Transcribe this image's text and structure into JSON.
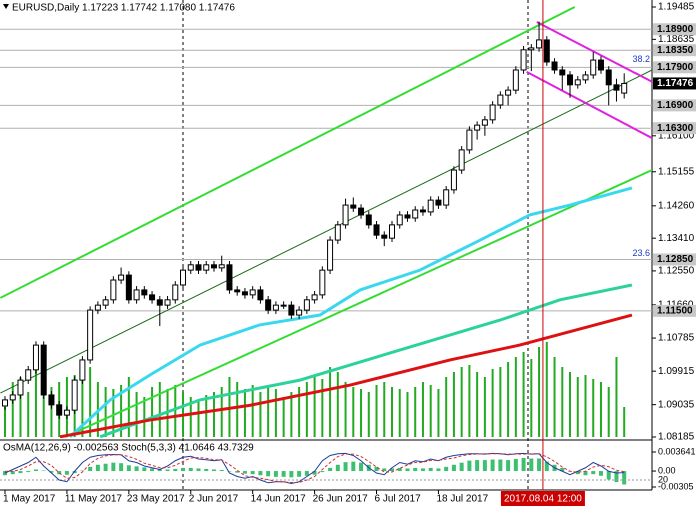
{
  "chart_data": {
    "type": "candlestick",
    "title": "EURUSD,Daily  1.17223 1.17742 1.17080 1.17476",
    "subtitle": "OsMA(12,26,9) -0.002563  Stoch(5,3,3) 41.0646 43.7329",
    "crosshair": {
      "x": 69.5,
      "label": "2017.08.04 12:00"
    },
    "categories": [
      "1 May 2017",
      null,
      null,
      null,
      null,
      null,
      null,
      null,
      "11 May 2017",
      null,
      null,
      null,
      null,
      null,
      null,
      null,
      "23 May 2017",
      null,
      null,
      null,
      null,
      null,
      null,
      null,
      "2 Jun 2017",
      null,
      null,
      null,
      null,
      null,
      null,
      null,
      "14 Jun 2017",
      null,
      null,
      null,
      null,
      null,
      null,
      null,
      "26 Jun 2017",
      null,
      null,
      null,
      null,
      null,
      null,
      null,
      "6 Jul 2017",
      null,
      null,
      null,
      null,
      null,
      null,
      null,
      "18 Jul 2017",
      null,
      null,
      null,
      null,
      null,
      null,
      null,
      null,
      null,
      null,
      null,
      null,
      null,
      null,
      null,
      null,
      null,
      null,
      null,
      null,
      null,
      null,
      null,
      null
    ],
    "up_color": "#ffffff",
    "down_color": "#000000",
    "candles": [
      [
        1.09,
        1.0926,
        1.089,
        1.0916
      ],
      [
        1.0916,
        1.0939,
        1.0906,
        1.0929
      ],
      [
        1.0929,
        1.0978,
        1.0919,
        1.0968
      ],
      [
        1.0968,
        1.1005,
        1.0958,
        1.0995
      ],
      [
        1.0995,
        1.107,
        1.0985,
        1.106
      ],
      [
        1.106,
        1.107,
        1.0919,
        1.0929
      ],
      [
        1.0929,
        1.0939,
        1.0893,
        1.0903
      ],
      [
        1.0903,
        1.0913,
        1.0866,
        1.0876
      ],
      [
        1.0876,
        1.0899,
        1.0866,
        1.0889
      ],
      [
        1.0889,
        1.0978,
        1.0879,
        1.0968
      ],
      [
        1.0968,
        1.1031,
        1.0958,
        1.1021
      ],
      [
        1.1021,
        1.1162,
        1.1011,
        1.1152
      ],
      [
        1.1152,
        1.1175,
        1.1142,
        1.1165
      ],
      [
        1.1165,
        1.1189,
        1.1155,
        1.1179
      ],
      [
        1.1179,
        1.1241,
        1.1169,
        1.1231
      ],
      [
        1.1231,
        1.1264,
        1.1221,
        1.1244
      ],
      [
        1.1244,
        1.1254,
        1.1169,
        1.1179
      ],
      [
        1.1179,
        1.1215,
        1.1169,
        1.1205
      ],
      [
        1.1205,
        1.1215,
        1.1182,
        1.1192
      ],
      [
        1.1192,
        1.1202,
        1.1169,
        1.1179
      ],
      [
        1.1179,
        1.1189,
        1.111,
        1.1165
      ],
      [
        1.1165,
        1.1189,
        1.1155,
        1.1179
      ],
      [
        1.1179,
        1.1228,
        1.1169,
        1.1218
      ],
      [
        1.1218,
        1.1267,
        1.1208,
        1.1257
      ],
      [
        1.1257,
        1.1281,
        1.1247,
        1.1271
      ],
      [
        1.1271,
        1.1281,
        1.1247,
        1.1257
      ],
      [
        1.1257,
        1.1281,
        1.1247,
        1.1271
      ],
      [
        1.1271,
        1.1281,
        1.1253,
        1.1263
      ],
      [
        1.1263,
        1.1295,
        1.1253,
        1.1271
      ],
      [
        1.1271,
        1.1281,
        1.1195,
        1.1205
      ],
      [
        1.1205,
        1.1215,
        1.119,
        1.12
      ],
      [
        1.12,
        1.121,
        1.1182,
        1.1192
      ],
      [
        1.1192,
        1.1215,
        1.1182,
        1.1205
      ],
      [
        1.1205,
        1.1215,
        1.1169,
        1.1179
      ],
      [
        1.1179,
        1.1189,
        1.1142,
        1.1152
      ],
      [
        1.1152,
        1.1175,
        1.1142,
        1.1165
      ],
      [
        1.1165,
        1.1175,
        1.1155,
        1.1165
      ],
      [
        1.1165,
        1.1175,
        1.1129,
        1.1139
      ],
      [
        1.1139,
        1.1162,
        1.1129,
        1.1152
      ],
      [
        1.1152,
        1.1189,
        1.1142,
        1.1179
      ],
      [
        1.1179,
        1.1202,
        1.1169,
        1.1192
      ],
      [
        1.1192,
        1.1267,
        1.1182,
        1.1257
      ],
      [
        1.1257,
        1.1346,
        1.1247,
        1.1336
      ],
      [
        1.1336,
        1.1386,
        1.1326,
        1.1376
      ],
      [
        1.1376,
        1.1445,
        1.1366,
        1.1428
      ],
      [
        1.1428,
        1.1448,
        1.141,
        1.142
      ],
      [
        1.142,
        1.143,
        1.1392,
        1.1402
      ],
      [
        1.1402,
        1.1412,
        1.1366,
        1.1376
      ],
      [
        1.1376,
        1.1386,
        1.1339,
        1.1349
      ],
      [
        1.1349,
        1.1359,
        1.132,
        1.1341
      ],
      [
        1.1341,
        1.1386,
        1.1331,
        1.1376
      ],
      [
        1.1376,
        1.1412,
        1.1366,
        1.1402
      ],
      [
        1.1402,
        1.1412,
        1.1384,
        1.1394
      ],
      [
        1.1394,
        1.1425,
        1.1384,
        1.1415
      ],
      [
        1.1415,
        1.1425,
        1.14,
        1.141
      ],
      [
        1.141,
        1.1451,
        1.14,
        1.1441
      ],
      [
        1.1441,
        1.1451,
        1.1418,
        1.1428
      ],
      [
        1.1428,
        1.1478,
        1.1418,
        1.1468
      ],
      [
        1.1468,
        1.153,
        1.1458,
        1.152
      ],
      [
        1.152,
        1.1583,
        1.151,
        1.1573
      ],
      [
        1.1573,
        1.1635,
        1.1563,
        1.1625
      ],
      [
        1.1625,
        1.1648,
        1.16,
        1.1638
      ],
      [
        1.1638,
        1.1662,
        1.161,
        1.1652
      ],
      [
        1.1652,
        1.1701,
        1.1642,
        1.1691
      ],
      [
        1.1691,
        1.1727,
        1.1681,
        1.1717
      ],
      [
        1.1717,
        1.174,
        1.169,
        1.173
      ],
      [
        1.173,
        1.1793,
        1.172,
        1.1783
      ],
      [
        1.1783,
        1.1846,
        1.1773,
        1.1836
      ],
      [
        1.1836,
        1.1851,
        1.178,
        1.1841
      ],
      [
        1.1841,
        1.191,
        1.1831,
        1.1862
      ],
      [
        1.1862,
        1.1872,
        1.1794,
        1.1804
      ],
      [
        1.1804,
        1.1814,
        1.1773,
        1.1783
      ],
      [
        1.1783,
        1.1793,
        1.173,
        1.177
      ],
      [
        1.177,
        1.178,
        1.171,
        1.1744
      ],
      [
        1.1744,
        1.1767,
        1.1734,
        1.1757
      ],
      [
        1.1757,
        1.178,
        1.1747,
        1.177
      ],
      [
        1.177,
        1.183,
        1.176,
        1.1809
      ],
      [
        1.1809,
        1.1819,
        1.1773,
        1.1783
      ],
      [
        1.1783,
        1.1793,
        1.169,
        1.1744
      ],
      [
        1.1744,
        1.176,
        1.17,
        1.173
      ],
      [
        1.17223,
        1.17742,
        1.1708,
        1.17476
      ]
    ],
    "volume_color": "#22aa22",
    "volume_lim": [
      0,
      430
    ],
    "volume": [
      30,
      55,
      60,
      45,
      70,
      65,
      50,
      55,
      60,
      62,
      58,
      70,
      55,
      50,
      48,
      52,
      60,
      45,
      40,
      50,
      55,
      48,
      52,
      45,
      40,
      38,
      42,
      45,
      50,
      60,
      55,
      48,
      52,
      45,
      50,
      48,
      40,
      45,
      50,
      55,
      60,
      58,
      70,
      65,
      55,
      50,
      48,
      45,
      52,
      55,
      50,
      48,
      45,
      50,
      55,
      52,
      48,
      60,
      65,
      70,
      72,
      65,
      60,
      68,
      70,
      75,
      80,
      85,
      78,
      90,
      95,
      80,
      70,
      65,
      60,
      62,
      58,
      55,
      50,
      80,
      30
    ],
    "ylim": [
      1.08185,
      1.19485
    ],
    "yticks": [
      1.19485,
      1.18635,
      {
        "value": 1.161,
        "label": "1.16100"
      },
      1.15155,
      {
        "value": 1.1426,
        "label": "1.14260"
      },
      {
        "value": 1.1341,
        "label": "1.13410"
      },
      {
        "value": 1.1255,
        "label": "1.12550"
      },
      {
        "value": 1.1166,
        "label": "1.11660"
      },
      1.10785,
      1.09915,
      1.09035,
      1.08185
    ],
    "levels": [
      {
        "value": 1.189,
        "label": "1.18900"
      },
      {
        "value": 1.1835,
        "label": "1.18350"
      },
      {
        "value": 1.179,
        "label": "1.17900"
      },
      {
        "value": 1.169,
        "label": "1.16900"
      },
      {
        "value": 1.163,
        "label": "1.16300"
      },
      {
        "value": 1.1285,
        "label": "1.12850"
      },
      {
        "value": 1.115,
        "label": "1.11500"
      }
    ],
    "last_price": 1.17476,
    "fib_levels": [
      {
        "text": "38.2",
        "price": 1.1795
      },
      {
        "text": "23.6",
        "price": 1.1285
      }
    ],
    "overlays": [
      {
        "color": "#33dd33",
        "width": 2,
        "x": [
          -0.6,
          73.6
        ],
        "values": [
          1.1184,
          1.19485
        ]
      },
      {
        "color": "#33dd33",
        "width": 2,
        "x": [
          7.75,
          83.6
        ],
        "values": [
          1.08185,
          1.152
        ]
      },
      {
        "color": "#1a6b1a",
        "width": 1,
        "x": [
          -0.6,
          83.6
        ],
        "values": [
          1.0934,
          1.1783
        ]
      },
      {
        "color": "#e020e0",
        "width": 2,
        "x": [
          68.7,
          83.6
        ],
        "values": [
          1.1909,
          1.1752
        ]
      },
      {
        "color": "#e020e0",
        "width": 2,
        "x": [
          67.4,
          83.6
        ],
        "values": [
          1.1778,
          1.1604
        ]
      },
      {
        "color": "#3ad8ee",
        "width": 3,
        "x": [
          8.4,
          13.6,
          18.7,
          25.2,
          32.9,
          40.7,
          45.9,
          53.6,
          61.4,
          67.8,
          73.0,
          81.0
        ],
        "values": [
          1.0819,
          1.0916,
          1.0981,
          1.106,
          1.1113,
          1.1139,
          1.1205,
          1.1257,
          1.1336,
          1.1402,
          1.1428,
          1.1473
        ]
      },
      {
        "color": "#2bd39a",
        "width": 3,
        "x": [
          12.3,
          25.2,
          38.1,
          51.0,
          64.0,
          71.7,
          81.0
        ],
        "values": [
          1.0819,
          1.0916,
          1.0968,
          1.1047,
          1.1126,
          1.1179,
          1.1218
        ]
      },
      {
        "color": "#dd1111",
        "width": 3,
        "x": [
          7.1,
          18.7,
          31.7,
          44.6,
          57.5,
          66.5,
          81.0
        ],
        "values": [
          1.0819,
          1.0863,
          1.0902,
          1.0955,
          1.1021,
          1.106,
          1.1139
        ]
      }
    ],
    "osma": {
      "color": "#3cc070",
      "values": [
        -0.0008,
        -0.0006,
        -0.0004,
        -0.0002,
        0.0003,
        0.0001,
        -0.0003,
        -0.0006,
        -0.0007,
        -0.0004,
        0.0001,
        0.0008,
        0.0012,
        0.0014,
        0.0016,
        0.0015,
        0.0011,
        0.0009,
        0.0007,
        0.0005,
        0.0003,
        0.0003,
        0.0004,
        0.0006,
        0.0006,
        0.0005,
        0.0004,
        0.0003,
        0.0002,
        -0.0001,
        -0.0003,
        -0.0005,
        -0.0006,
        -0.0008,
        -0.001,
        -0.0011,
        -0.0011,
        -0.0012,
        -0.0011,
        -0.0009,
        -0.0007,
        -0.0002,
        0.0006,
        0.0012,
        0.0017,
        0.0018,
        0.0016,
        0.0012,
        0.0008,
        0.0005,
        0.0005,
        0.0006,
        0.0005,
        0.0006,
        0.0005,
        0.0006,
        0.0005,
        0.0008,
        0.0012,
        0.0016,
        0.002,
        0.0021,
        0.0021,
        0.0022,
        0.0022,
        0.0021,
        0.0023,
        0.0025,
        0.0024,
        0.0024,
        0.0018,
        0.0012,
        0.0006,
        -0.0001,
        -0.0006,
        -0.0008,
        -0.0006,
        -0.0009,
        -0.0016,
        -0.0021,
        -0.002563
      ],
      "ylim": [
        -0.00305,
        0.003641
      ],
      "yticks": [
        0.003641,
        {
          "value": 0,
          "label": "0.00"
        },
        -0.00305
      ]
    },
    "stoch": {
      "y2lim": [
        0,
        100
      ],
      "y2ticks": [
        20
      ],
      "series": [
        {
          "color": "#1e3ca0",
          "values": [
            40,
            50,
            60,
            70,
            85,
            60,
            40,
            20,
            15,
            45,
            70,
            85,
            90,
            92,
            93,
            92,
            75,
            70,
            60,
            55,
            50,
            60,
            75,
            85,
            88,
            80,
            78,
            75,
            78,
            40,
            30,
            25,
            30,
            20,
            12,
            15,
            15,
            10,
            15,
            30,
            45,
            75,
            90,
            95,
            96,
            90,
            75,
            55,
            40,
            35,
            55,
            70,
            65,
            75,
            72,
            80,
            75,
            85,
            90,
            93,
            95,
            95,
            94,
            96,
            95,
            92,
            95,
            96,
            94,
            95,
            70,
            55,
            45,
            35,
            45,
            55,
            70,
            60,
            45,
            40,
            41.0646
          ]
        },
        {
          "color": "#d03030",
          "dash": "3,2",
          "values": [
            45,
            45,
            50,
            60,
            72,
            72,
            62,
            40,
            25,
            27,
            43,
            67,
            82,
            89,
            92,
            92,
            87,
            79,
            68,
            62,
            55,
            55,
            62,
            73,
            83,
            84,
            82,
            78,
            77,
            64,
            48,
            32,
            28,
            25,
            21,
            16,
            14,
            13,
            13,
            20,
            30,
            50,
            70,
            87,
            94,
            94,
            87,
            73,
            57,
            43,
            43,
            53,
            63,
            70,
            71,
            76,
            76,
            80,
            83,
            89,
            93,
            94,
            95,
            95,
            95,
            94,
            94,
            94,
            95,
            95,
            86,
            73,
            57,
            45,
            42,
            45,
            57,
            62,
            58,
            48,
            43.7329
          ]
        }
      ]
    }
  }
}
